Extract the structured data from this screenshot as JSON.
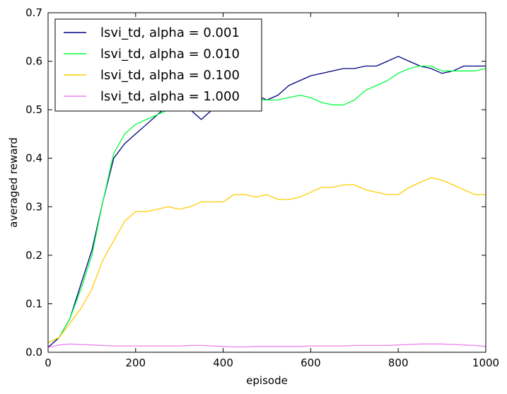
{
  "chart_data": {
    "type": "line",
    "title": "",
    "xlabel": "episode",
    "ylabel": "averaged reward",
    "xlim": [
      0,
      1000
    ],
    "ylim": [
      0.0,
      0.7
    ],
    "x_ticks": [
      0,
      200,
      400,
      600,
      800,
      1000
    ],
    "y_ticks": [
      "0.0",
      "0.1",
      "0.2",
      "0.3",
      "0.4",
      "0.5",
      "0.6",
      "0.7"
    ],
    "grid": false,
    "legend_position": "top-left",
    "series": [
      {
        "name": "lsvi_td, alpha = 0.001",
        "color": "#000080",
        "x": [
          0,
          25,
          50,
          75,
          100,
          125,
          150,
          175,
          200,
          225,
          250,
          275,
          300,
          325,
          350,
          375,
          400,
          425,
          450,
          475,
          500,
          525,
          550,
          575,
          600,
          625,
          650,
          675,
          700,
          725,
          750,
          775,
          800,
          825,
          850,
          875,
          900,
          925,
          950,
          975,
          1000
        ],
        "values": [
          0.01,
          0.03,
          0.07,
          0.14,
          0.21,
          0.31,
          0.4,
          0.43,
          0.45,
          0.47,
          0.49,
          0.51,
          0.51,
          0.5,
          0.48,
          0.5,
          0.5,
          0.51,
          0.52,
          0.53,
          0.52,
          0.53,
          0.55,
          0.56,
          0.57,
          0.575,
          0.58,
          0.585,
          0.585,
          0.59,
          0.59,
          0.6,
          0.61,
          0.6,
          0.59,
          0.585,
          0.575,
          0.58,
          0.59,
          0.59,
          0.59
        ]
      },
      {
        "name": "lsvi_td, alpha = 0.010",
        "color": "#00ff40",
        "x": [
          0,
          25,
          50,
          75,
          100,
          125,
          150,
          175,
          200,
          225,
          250,
          275,
          300,
          325,
          350,
          375,
          400,
          425,
          450,
          475,
          500,
          525,
          550,
          575,
          600,
          625,
          650,
          675,
          700,
          725,
          750,
          775,
          800,
          825,
          850,
          875,
          900,
          925,
          950,
          975,
          1000
        ],
        "values": [
          0.02,
          0.03,
          0.07,
          0.13,
          0.2,
          0.31,
          0.41,
          0.45,
          0.47,
          0.48,
          0.49,
          0.5,
          0.51,
          0.52,
          0.52,
          0.52,
          0.52,
          0.52,
          0.52,
          0.52,
          0.52,
          0.52,
          0.525,
          0.53,
          0.525,
          0.515,
          0.51,
          0.51,
          0.52,
          0.54,
          0.55,
          0.56,
          0.575,
          0.585,
          0.59,
          0.59,
          0.58,
          0.58,
          0.58,
          0.58,
          0.585
        ]
      },
      {
        "name": "lsvi_td, alpha = 0.100",
        "color": "#ffcc00",
        "x": [
          0,
          25,
          50,
          75,
          100,
          125,
          150,
          175,
          200,
          225,
          250,
          275,
          300,
          325,
          350,
          375,
          400,
          425,
          450,
          475,
          500,
          525,
          550,
          575,
          600,
          625,
          650,
          675,
          700,
          725,
          750,
          775,
          800,
          825,
          850,
          875,
          900,
          925,
          950,
          975,
          1000
        ],
        "values": [
          0.02,
          0.03,
          0.06,
          0.09,
          0.13,
          0.19,
          0.23,
          0.27,
          0.29,
          0.29,
          0.295,
          0.3,
          0.295,
          0.3,
          0.31,
          0.31,
          0.31,
          0.325,
          0.325,
          0.32,
          0.325,
          0.315,
          0.315,
          0.32,
          0.33,
          0.34,
          0.34,
          0.345,
          0.345,
          0.335,
          0.33,
          0.325,
          0.325,
          0.34,
          0.35,
          0.36,
          0.355,
          0.345,
          0.335,
          0.325,
          0.325
        ]
      },
      {
        "name": "lsvi_td, alpha = 1.000",
        "color": "#ee82ee",
        "x": [
          0,
          25,
          50,
          75,
          100,
          125,
          150,
          175,
          200,
          225,
          250,
          275,
          300,
          325,
          350,
          375,
          400,
          425,
          450,
          475,
          500,
          525,
          550,
          575,
          600,
          625,
          650,
          675,
          700,
          725,
          750,
          775,
          800,
          825,
          850,
          875,
          900,
          925,
          950,
          975,
          1000
        ],
        "values": [
          0.01,
          0.015,
          0.017,
          0.016,
          0.015,
          0.014,
          0.013,
          0.013,
          0.013,
          0.013,
          0.013,
          0.013,
          0.013,
          0.014,
          0.014,
          0.013,
          0.012,
          0.011,
          0.011,
          0.012,
          0.012,
          0.012,
          0.012,
          0.012,
          0.013,
          0.013,
          0.013,
          0.013,
          0.014,
          0.014,
          0.014,
          0.014,
          0.015,
          0.016,
          0.017,
          0.017,
          0.017,
          0.016,
          0.015,
          0.014,
          0.012
        ]
      }
    ]
  }
}
